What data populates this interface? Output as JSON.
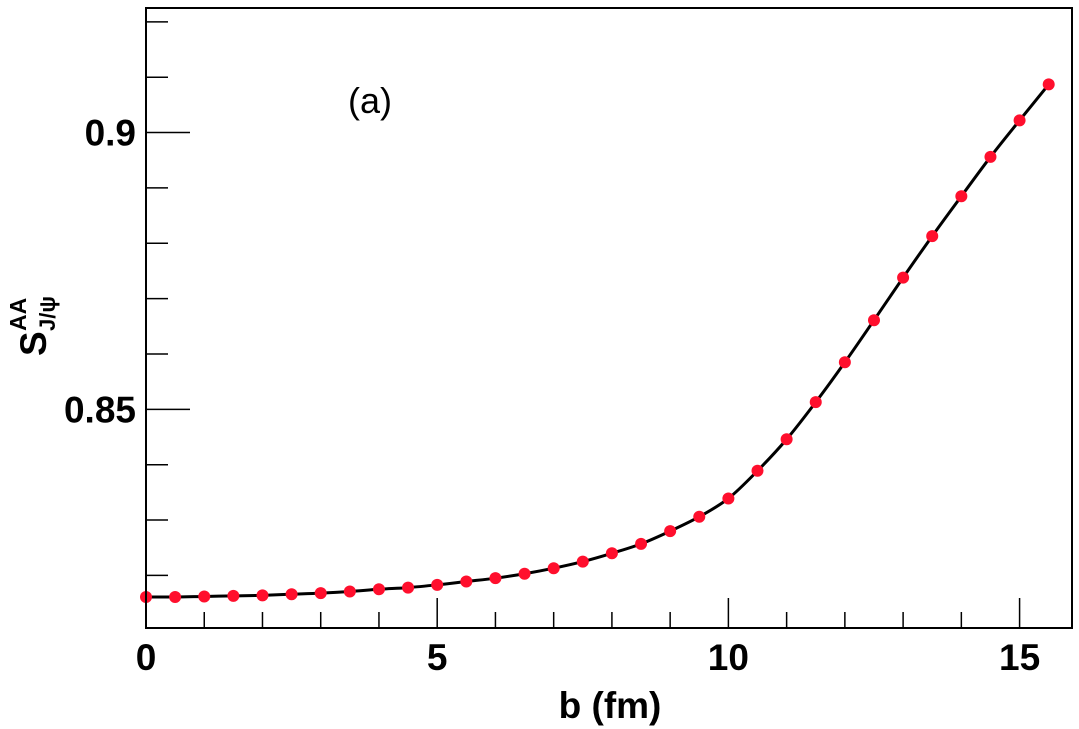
{
  "chart_data": {
    "type": "line",
    "panel_label": "(a)",
    "xlabel": "b (fm)",
    "ylabel": {
      "main": "S",
      "superscript": "AA",
      "subscript": "J/ψ"
    },
    "xlim": [
      0,
      15.9
    ],
    "ylim": [
      0.8105,
      0.9225
    ],
    "x_major_ticks": [
      0,
      5,
      10,
      15
    ],
    "x_tick_labels": [
      "0",
      "5",
      "10",
      "15"
    ],
    "x_minor_step": 1,
    "y_major_ticks": [
      0.85,
      0.9
    ],
    "y_tick_labels": [
      "0.85",
      "0.9"
    ],
    "y_minor_step": 0.01,
    "grid": false,
    "colors": {
      "line": "#000000",
      "markers": "#ff0f2d",
      "frame": "#000000"
    },
    "series": [
      {
        "x": [
          0,
          0.5,
          1,
          1.5,
          2,
          2.5,
          3,
          3.5,
          4,
          4.5,
          5,
          5.5,
          6,
          6.5,
          7,
          7.5,
          8,
          8.5,
          9,
          9.5,
          10,
          10.5,
          11,
          11.5,
          12,
          12.5,
          13,
          13.5,
          14,
          14.5,
          15,
          15.5
        ],
        "y": [
          0.8161,
          0.8161,
          0.8162,
          0.8163,
          0.8164,
          0.8166,
          0.8168,
          0.8171,
          0.8175,
          0.8178,
          0.8183,
          0.8189,
          0.8195,
          0.8203,
          0.8213,
          0.8225,
          0.824,
          0.8257,
          0.828,
          0.8306,
          0.8339,
          0.8389,
          0.8446,
          0.8513,
          0.8585,
          0.8661,
          0.8738,
          0.8813,
          0.8885,
          0.8956,
          0.9022,
          0.9087
        ]
      }
    ]
  }
}
